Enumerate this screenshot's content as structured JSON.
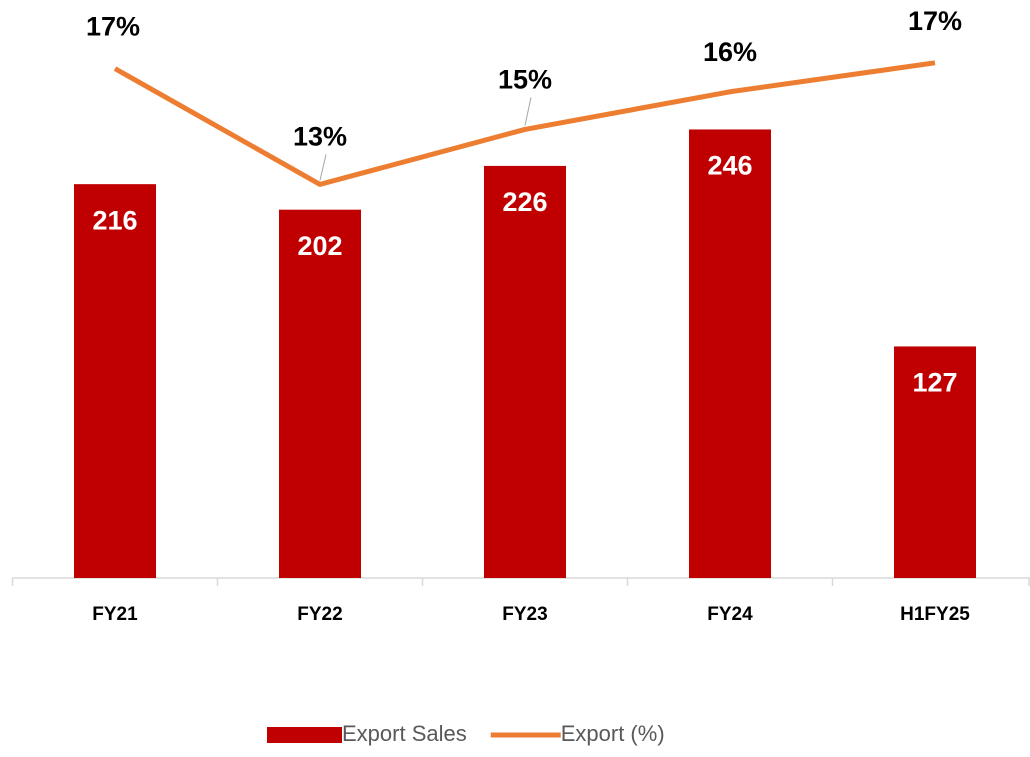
{
  "chart_data": {
    "type": "bar",
    "categories": [
      "FY21",
      "FY22",
      "FY23",
      "FY24",
      "H1FY25"
    ],
    "ylim": [
      0,
      300
    ],
    "y2lim": [
      -0.6,
      18.3
    ],
    "series": [
      {
        "name": "Export Sales",
        "type": "bar",
        "color": "#c00000",
        "values": [
          216,
          202,
          226,
          246,
          127
        ]
      },
      {
        "name": "Export (%)",
        "type": "line",
        "axis": "y2",
        "color": "#ed7d31",
        "values": [
          17.0,
          13.0,
          14.9,
          16.2,
          17.2
        ],
        "value_labels": [
          "17%",
          "13%",
          "15%",
          "16%",
          "17%"
        ]
      }
    ]
  }
}
